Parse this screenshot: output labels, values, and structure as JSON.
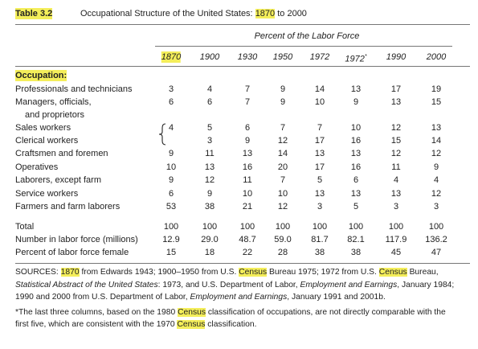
{
  "header": {
    "label": "Table 3.2",
    "title": [
      "Occupational Structure of the United States: ",
      "1870",
      " to 2000"
    ]
  },
  "table": {
    "spanner": "Percent of the Labor Force",
    "columns": [
      "1870",
      "1900",
      "1930",
      "1950",
      "1972",
      {
        "label": "1972",
        "note": "*"
      },
      "1990",
      "2000"
    ],
    "group_label": "Occupation:",
    "rows": [
      {
        "label": [
          "Professionals and technicians"
        ],
        "values": [
          "3",
          "4",
          "7",
          "9",
          "14",
          "13",
          "17",
          "19"
        ]
      },
      {
        "label": [
          "Managers, officials,",
          "and proprietors"
        ],
        "values": [
          "6",
          "6",
          "7",
          "9",
          "10",
          "9",
          "13",
          "15"
        ]
      },
      {
        "label": [
          "Sales workers"
        ],
        "values": [
          "4",
          "5",
          "6",
          "7",
          "7",
          "10",
          "12",
          "13"
        ]
      },
      {
        "label": [
          "Clerical workers"
        ],
        "values": [
          null,
          "3",
          "9",
          "12",
          "17",
          "16",
          "15",
          "14"
        ]
      },
      {
        "label": [
          "Craftsmen and foremen"
        ],
        "values": [
          "9",
          "11",
          "13",
          "14",
          "13",
          "13",
          "12",
          "12"
        ]
      },
      {
        "label": [
          "Operatives"
        ],
        "values": [
          "10",
          "13",
          "16",
          "20",
          "17",
          "16",
          "11",
          "9"
        ]
      },
      {
        "label": [
          "Laborers, except farm"
        ],
        "values": [
          "9",
          "12",
          "11",
          "7",
          "5",
          "6",
          "4",
          "4"
        ]
      },
      {
        "label": [
          "Service workers"
        ],
        "values": [
          "6",
          "9",
          "10",
          "10",
          "13",
          "13",
          "13",
          "12"
        ]
      },
      {
        "label": [
          "Farmers and farm laborers"
        ],
        "values": [
          "53",
          "38",
          "21",
          "12",
          "3",
          "5",
          "3",
          "3"
        ]
      }
    ],
    "summary_rows": [
      {
        "label": [
          "Total"
        ],
        "values": [
          "100",
          "100",
          "100",
          "100",
          "100",
          "100",
          "100",
          "100"
        ]
      },
      {
        "label": [
          "Number in labor force (millions)"
        ],
        "values": [
          "12.9",
          "29.0",
          "48.7",
          "59.0",
          "81.7",
          "82.1",
          "117.9",
          "136.2"
        ]
      },
      {
        "label": [
          "Percent of labor force female"
        ],
        "values": [
          "15",
          "18",
          "22",
          "28",
          "38",
          "38",
          "45",
          "47"
        ]
      }
    ]
  },
  "sources": {
    "lines": [
      [
        "SOURCES: ",
        "1870",
        " from Edwards 1943; 1900–1950 from U.S. ",
        "Census",
        " Bureau 1975; 1972 from U.S. ",
        "Census",
        " Bureau,"
      ],
      [
        "Statistical Abstract of the United States",
        ": 1973, and U.S. Department of Labor, ",
        "Employment and Earnings",
        ", January 1984;"
      ],
      [
        "1990 and 2000 from U.S. Department of Labor, ",
        "Employment and Earnings",
        ", January 1991 and 2001b."
      ]
    ]
  },
  "footnote": {
    "lines": [
      [
        "*The last three columns, based on the 1980 ",
        "Census",
        " classification of occupations, are not directly comparable with the"
      ],
      [
        "first five, which are consistent with the 1970 ",
        "Census",
        " classification."
      ]
    ]
  }
}
